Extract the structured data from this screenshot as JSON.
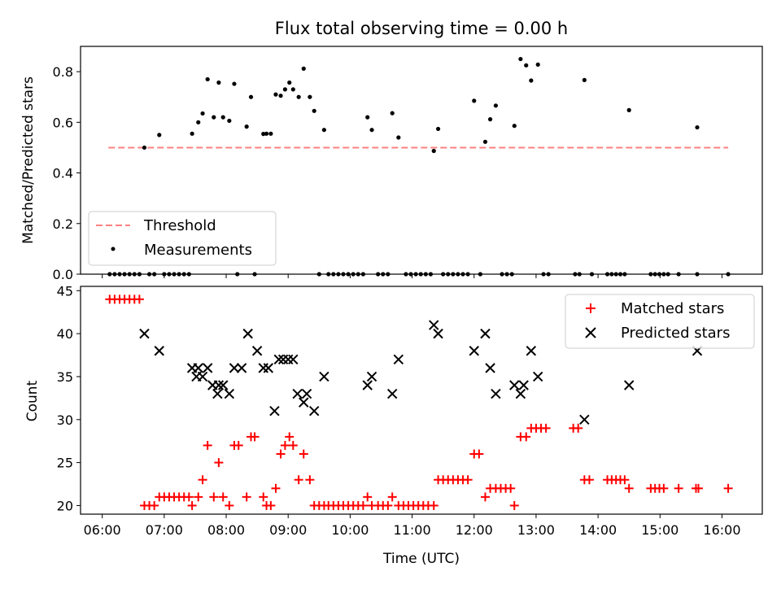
{
  "title": "Flux total observing time = 0.00 h",
  "chart_data": [
    {
      "type": "scatter",
      "ylabel": "Matched/Predicted stars",
      "xlim": [
        5.65,
        16.65
      ],
      "ylim": [
        0.0,
        0.9
      ],
      "yticks": [
        0.0,
        0.2,
        0.4,
        0.6,
        0.8
      ],
      "ytick_labels": [
        "0.0",
        "0.2",
        "0.4",
        "0.6",
        "0.8"
      ],
      "xtick_labels": [],
      "legend": {
        "placement": "lower-left",
        "entries": [
          "Threshold",
          "Measurements"
        ]
      },
      "threshold": {
        "name": "Threshold",
        "x": [
          6.1,
          16.1
        ],
        "y": 0.5,
        "color": "#ff8080"
      },
      "series": [
        {
          "name": "Measurements",
          "color": "#000000",
          "points": [
            [
              6.68,
              0.5
            ],
            [
              6.92,
              0.55
            ],
            [
              7.45,
              0.555
            ],
            [
              7.55,
              0.6
            ],
            [
              7.62,
              0.635
            ],
            [
              7.7,
              0.77
            ],
            [
              7.8,
              0.62
            ],
            [
              7.88,
              0.757
            ],
            [
              7.95,
              0.62
            ],
            [
              8.05,
              0.606
            ],
            [
              8.13,
              0.752
            ],
            [
              8.33,
              0.583
            ],
            [
              8.4,
              0.7
            ],
            [
              8.6,
              0.554
            ],
            [
              8.65,
              0.555
            ],
            [
              8.72,
              0.555
            ],
            [
              8.8,
              0.71
            ],
            [
              8.88,
              0.705
            ],
            [
              8.95,
              0.73
            ],
            [
              9.02,
              0.757
            ],
            [
              9.08,
              0.73
            ],
            [
              9.17,
              0.7
            ],
            [
              9.25,
              0.812
            ],
            [
              9.35,
              0.7
            ],
            [
              9.42,
              0.645
            ],
            [
              9.58,
              0.57
            ],
            [
              10.28,
              0.62
            ],
            [
              10.35,
              0.57
            ],
            [
              10.68,
              0.636
            ],
            [
              10.78,
              0.54
            ],
            [
              11.35,
              0.487
            ],
            [
              11.42,
              0.574
            ],
            [
              12.0,
              0.685
            ],
            [
              12.18,
              0.523
            ],
            [
              12.26,
              0.612
            ],
            [
              12.35,
              0.666
            ],
            [
              12.65,
              0.586
            ],
            [
              12.75,
              0.85
            ],
            [
              12.84,
              0.825
            ],
            [
              12.92,
              0.765
            ],
            [
              13.03,
              0.828
            ],
            [
              13.78,
              0.767
            ],
            [
              14.5,
              0.648
            ],
            [
              15.6,
              0.58
            ],
            [
              6.12,
              0.0
            ],
            [
              6.2,
              0.0
            ],
            [
              6.28,
              0.0
            ],
            [
              6.36,
              0.0
            ],
            [
              6.44,
              0.0
            ],
            [
              6.52,
              0.0
            ],
            [
              6.6,
              0.0
            ],
            [
              6.76,
              0.0
            ],
            [
              6.84,
              0.0
            ],
            [
              7.0,
              0.0
            ],
            [
              7.08,
              0.0
            ],
            [
              7.16,
              0.0
            ],
            [
              7.24,
              0.0
            ],
            [
              7.32,
              0.0
            ],
            [
              7.4,
              0.0
            ],
            [
              8.18,
              0.0
            ],
            [
              8.46,
              0.0
            ],
            [
              9.5,
              0.0
            ],
            [
              9.65,
              0.0
            ],
            [
              9.73,
              0.0
            ],
            [
              9.81,
              0.0
            ],
            [
              9.89,
              0.0
            ],
            [
              9.97,
              0.0
            ],
            [
              10.05,
              0.0
            ],
            [
              10.13,
              0.0
            ],
            [
              10.21,
              0.0
            ],
            [
              10.45,
              0.0
            ],
            [
              10.53,
              0.0
            ],
            [
              10.61,
              0.0
            ],
            [
              10.9,
              0.0
            ],
            [
              10.98,
              0.0
            ],
            [
              11.06,
              0.0
            ],
            [
              11.14,
              0.0
            ],
            [
              11.22,
              0.0
            ],
            [
              11.3,
              0.0
            ],
            [
              11.5,
              0.0
            ],
            [
              11.58,
              0.0
            ],
            [
              11.66,
              0.0
            ],
            [
              11.74,
              0.0
            ],
            [
              11.82,
              0.0
            ],
            [
              11.9,
              0.0
            ],
            [
              12.1,
              0.0
            ],
            [
              12.45,
              0.0
            ],
            [
              12.53,
              0.0
            ],
            [
              12.61,
              0.0
            ],
            [
              13.12,
              0.0
            ],
            [
              13.2,
              0.0
            ],
            [
              13.63,
              0.0
            ],
            [
              13.7,
              0.0
            ],
            [
              13.9,
              0.0
            ],
            [
              14.15,
              0.0
            ],
            [
              14.22,
              0.0
            ],
            [
              14.29,
              0.0
            ],
            [
              14.36,
              0.0
            ],
            [
              14.43,
              0.0
            ],
            [
              14.85,
              0.0
            ],
            [
              14.92,
              0.0
            ],
            [
              14.99,
              0.0
            ],
            [
              15.06,
              0.0
            ],
            [
              15.13,
              0.0
            ],
            [
              15.3,
              0.0
            ],
            [
              15.6,
              0.0
            ],
            [
              16.1,
              0.0
            ]
          ]
        }
      ]
    },
    {
      "type": "scatter",
      "ylabel": "Count",
      "xlabel": "Time (UTC)",
      "xlim": [
        5.65,
        16.65
      ],
      "ylim": [
        19.0,
        45.5
      ],
      "xticks": [
        6,
        7,
        8,
        9,
        10,
        11,
        12,
        13,
        14,
        15,
        16
      ],
      "xtick_labels": [
        "06:00",
        "07:00",
        "08:00",
        "09:00",
        "10:00",
        "11:00",
        "12:00",
        "13:00",
        "14:00",
        "15:00",
        "16:00"
      ],
      "yticks": [
        20,
        25,
        30,
        35,
        40,
        45
      ],
      "ytick_labels": [
        "20",
        "25",
        "30",
        "35",
        "40",
        "45"
      ],
      "legend": {
        "placement": "top-right",
        "entries": [
          "Matched stars",
          "Predicted stars"
        ]
      },
      "series": [
        {
          "name": "Matched stars",
          "marker": "+",
          "color": "#ff0000",
          "points": [
            [
              6.12,
              44
            ],
            [
              6.2,
              44
            ],
            [
              6.28,
              44
            ],
            [
              6.36,
              44
            ],
            [
              6.44,
              44
            ],
            [
              6.52,
              44
            ],
            [
              6.6,
              44
            ],
            [
              6.68,
              20
            ],
            [
              6.76,
              20
            ],
            [
              6.84,
              20
            ],
            [
              6.92,
              21
            ],
            [
              7.0,
              21
            ],
            [
              7.08,
              21
            ],
            [
              7.16,
              21
            ],
            [
              7.24,
              21
            ],
            [
              7.32,
              21
            ],
            [
              7.4,
              21
            ],
            [
              7.45,
              20
            ],
            [
              7.55,
              21
            ],
            [
              7.62,
              23
            ],
            [
              7.7,
              27
            ],
            [
              7.8,
              21
            ],
            [
              7.88,
              25
            ],
            [
              7.95,
              21
            ],
            [
              8.05,
              20
            ],
            [
              8.13,
              27
            ],
            [
              8.2,
              27
            ],
            [
              8.33,
              21
            ],
            [
              8.4,
              28
            ],
            [
              8.46,
              28
            ],
            [
              8.6,
              21
            ],
            [
              8.65,
              20
            ],
            [
              8.72,
              20
            ],
            [
              8.8,
              22
            ],
            [
              8.88,
              26
            ],
            [
              8.95,
              27
            ],
            [
              9.02,
              28
            ],
            [
              9.08,
              27
            ],
            [
              9.17,
              23
            ],
            [
              9.25,
              26
            ],
            [
              9.35,
              23
            ],
            [
              9.42,
              20
            ],
            [
              9.5,
              20
            ],
            [
              9.58,
              20
            ],
            [
              9.65,
              20
            ],
            [
              9.73,
              20
            ],
            [
              9.81,
              20
            ],
            [
              9.89,
              20
            ],
            [
              9.97,
              20
            ],
            [
              10.05,
              20
            ],
            [
              10.13,
              20
            ],
            [
              10.21,
              20
            ],
            [
              10.28,
              21
            ],
            [
              10.35,
              20
            ],
            [
              10.45,
              20
            ],
            [
              10.53,
              20
            ],
            [
              10.61,
              20
            ],
            [
              10.68,
              21
            ],
            [
              10.78,
              20
            ],
            [
              10.86,
              20
            ],
            [
              10.94,
              20
            ],
            [
              11.02,
              20
            ],
            [
              11.1,
              20
            ],
            [
              11.18,
              20
            ],
            [
              11.26,
              20
            ],
            [
              11.35,
              20
            ],
            [
              11.42,
              23
            ],
            [
              11.5,
              23
            ],
            [
              11.58,
              23
            ],
            [
              11.66,
              23
            ],
            [
              11.74,
              23
            ],
            [
              11.82,
              23
            ],
            [
              11.9,
              23
            ],
            [
              12.0,
              26
            ],
            [
              12.08,
              26
            ],
            [
              12.18,
              21
            ],
            [
              12.26,
              22
            ],
            [
              12.35,
              22
            ],
            [
              12.43,
              22
            ],
            [
              12.51,
              22
            ],
            [
              12.59,
              22
            ],
            [
              12.65,
              20
            ],
            [
              12.75,
              28
            ],
            [
              12.84,
              28
            ],
            [
              12.92,
              29
            ],
            [
              13.0,
              29
            ],
            [
              13.08,
              29
            ],
            [
              13.16,
              29
            ],
            [
              13.6,
              29
            ],
            [
              13.68,
              29
            ],
            [
              13.78,
              23
            ],
            [
              13.86,
              23
            ],
            [
              14.15,
              23
            ],
            [
              14.22,
              23
            ],
            [
              14.29,
              23
            ],
            [
              14.36,
              23
            ],
            [
              14.43,
              23
            ],
            [
              14.5,
              22
            ],
            [
              14.85,
              22
            ],
            [
              14.92,
              22
            ],
            [
              14.99,
              22
            ],
            [
              15.06,
              22
            ],
            [
              15.3,
              22
            ],
            [
              15.58,
              22
            ],
            [
              15.62,
              22
            ],
            [
              16.1,
              22
            ]
          ]
        },
        {
          "name": "Predicted stars",
          "marker": "x",
          "color": "#000000",
          "points": [
            [
              6.68,
              40
            ],
            [
              6.92,
              38
            ],
            [
              7.45,
              36
            ],
            [
              7.52,
              35
            ],
            [
              7.55,
              36
            ],
            [
              7.62,
              35
            ],
            [
              7.7,
              36
            ],
            [
              7.78,
              34
            ],
            [
              7.86,
              33
            ],
            [
              7.88,
              34
            ],
            [
              7.95,
              34
            ],
            [
              8.05,
              33
            ],
            [
              8.13,
              36
            ],
            [
              8.25,
              36
            ],
            [
              8.35,
              40
            ],
            [
              8.5,
              38
            ],
            [
              8.6,
              36
            ],
            [
              8.68,
              36
            ],
            [
              8.78,
              31
            ],
            [
              8.85,
              37
            ],
            [
              8.92,
              37
            ],
            [
              9.0,
              37
            ],
            [
              9.08,
              37
            ],
            [
              9.15,
              33
            ],
            [
              9.25,
              32
            ],
            [
              9.3,
              33
            ],
            [
              9.42,
              31
            ],
            [
              9.58,
              35
            ],
            [
              10.28,
              34
            ],
            [
              10.35,
              35
            ],
            [
              10.68,
              33
            ],
            [
              10.78,
              37
            ],
            [
              11.35,
              41
            ],
            [
              11.42,
              40
            ],
            [
              12.0,
              38
            ],
            [
              12.18,
              40
            ],
            [
              12.26,
              36
            ],
            [
              12.35,
              33
            ],
            [
              12.65,
              34
            ],
            [
              12.75,
              33
            ],
            [
              12.8,
              34
            ],
            [
              12.92,
              38
            ],
            [
              13.03,
              35
            ],
            [
              13.78,
              30
            ],
            [
              14.5,
              34
            ],
            [
              15.6,
              38
            ]
          ]
        }
      ]
    }
  ]
}
